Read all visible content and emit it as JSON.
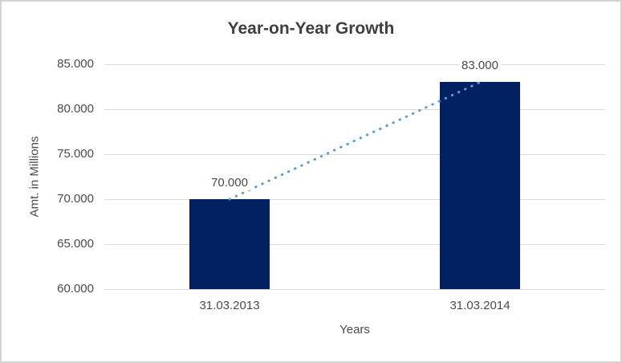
{
  "window": {
    "background": "#FFFFFF",
    "border_color": "#D4D4D4"
  },
  "chart_data": {
    "type": "bar",
    "title": "Year-on-Year Growth",
    "xlabel": "Years",
    "ylabel": "Amt. in Millions",
    "categories": [
      "31.03.2013",
      "31.03.2014"
    ],
    "series": [
      {
        "name": "amount-bars",
        "type": "bar",
        "values": [
          70000,
          83000
        ],
        "labels": [
          "70.000",
          "83.000"
        ],
        "color": "#002060"
      },
      {
        "name": "trend-line",
        "type": "line",
        "line_style": "dotted",
        "values": [
          70000,
          83000
        ],
        "color": "#5B9BD5"
      }
    ],
    "ylim": [
      60000,
      85000
    ],
    "ytick_step": 5000,
    "yticks": [
      "85.000",
      "80.000",
      "75.000",
      "70.000",
      "65.000",
      "60.000"
    ],
    "grid": true,
    "legend": false,
    "gridline_color": "#D9D9D9",
    "axis_line_color": "#D9D9D9",
    "text_color": "#4A4A4A",
    "title_color": "#3F3F3F"
  }
}
